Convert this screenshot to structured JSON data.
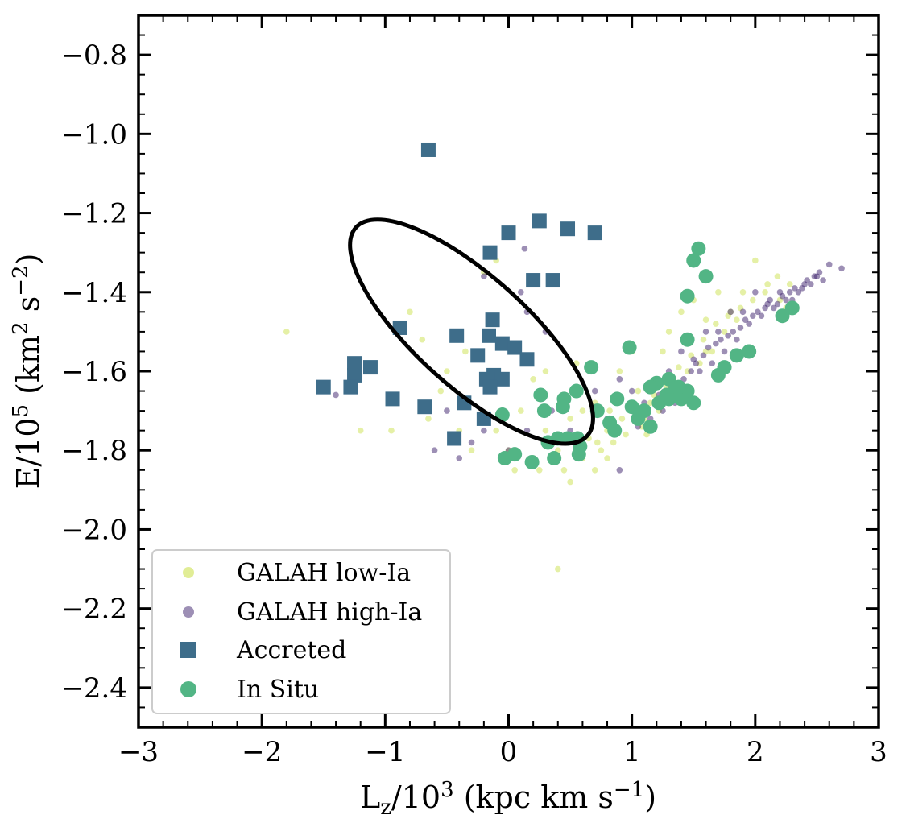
{
  "chart_data": {
    "type": "scatter",
    "title": "",
    "xlabel": {
      "base": "L",
      "sub": "z",
      "mid": "/10",
      "sup": "3",
      "tail": " (kpc km s",
      "tail_sup": "−1",
      "end": ")"
    },
    "ylabel": {
      "base": "E/10",
      "sup": "5",
      "mid": " (km",
      "sup2": "2",
      "mid2": " s",
      "sup3": "−2",
      "end": ")"
    },
    "xlim": [
      -3,
      3
    ],
    "ylim": [
      -2.5,
      -0.7
    ],
    "y_inverted": true,
    "x_ticks": [
      {
        "value": -3,
        "label": "−3"
      },
      {
        "value": -2,
        "label": "−2"
      },
      {
        "value": -1,
        "label": "−1"
      },
      {
        "value": 0,
        "label": "0"
      },
      {
        "value": 1,
        "label": "1"
      },
      {
        "value": 2,
        "label": "2"
      },
      {
        "value": 3,
        "label": "3"
      }
    ],
    "y_ticks": [
      {
        "value": -0.8,
        "label": "−0.8"
      },
      {
        "value": -1.0,
        "label": "−1.0"
      },
      {
        "value": -1.2,
        "label": "−1.2"
      },
      {
        "value": -1.4,
        "label": "−1.4"
      },
      {
        "value": -1.6,
        "label": "−1.6"
      },
      {
        "value": -1.8,
        "label": "−1.8"
      },
      {
        "value": -2.0,
        "label": "−2.0"
      },
      {
        "value": -2.2,
        "label": "−2.2"
      },
      {
        "value": -2.4,
        "label": "−2.4"
      }
    ],
    "ellipse": {
      "cx": -0.3,
      "cy": -1.5,
      "rx": 0.45,
      "ry": 0.48,
      "angle_deg": -48,
      "color": "#000000"
    },
    "legend_position": "lower-left",
    "series": [
      {
        "name": "GALAH low-Ia",
        "marker": "small-circle",
        "color": "#d4e66a",
        "opacity": 0.6,
        "points": [
          [
            -1.8,
            -1.5
          ],
          [
            -1.2,
            -1.75
          ],
          [
            -0.95,
            -1.75
          ],
          [
            -0.7,
            -1.52
          ],
          [
            -0.5,
            -1.6
          ],
          [
            -0.4,
            -1.75
          ],
          [
            -0.3,
            -1.8
          ],
          [
            -0.2,
            -1.35
          ],
          [
            -0.1,
            -1.32
          ],
          [
            0.2,
            -1.62
          ],
          [
            0.3,
            -1.6
          ],
          [
            0.1,
            -1.7
          ],
          [
            -0.1,
            -1.75
          ],
          [
            0.0,
            -1.8
          ],
          [
            0.05,
            -1.85
          ],
          [
            0.2,
            -1.82
          ],
          [
            0.4,
            -1.8
          ],
          [
            0.5,
            -1.72
          ],
          [
            0.55,
            -1.58
          ],
          [
            0.7,
            -1.68
          ],
          [
            0.8,
            -1.75
          ],
          [
            0.9,
            -1.6
          ],
          [
            1.0,
            -1.55
          ],
          [
            1.05,
            -1.65
          ],
          [
            1.1,
            -1.72
          ],
          [
            1.2,
            -1.62
          ],
          [
            1.25,
            -1.55
          ],
          [
            1.3,
            -1.5
          ],
          [
            1.4,
            -1.45
          ],
          [
            1.5,
            -1.42
          ],
          [
            1.6,
            -1.55
          ],
          [
            1.7,
            -1.4
          ],
          [
            1.8,
            -1.45
          ],
          [
            1.9,
            -1.4
          ],
          [
            2.0,
            -1.32
          ],
          [
            2.1,
            -1.38
          ],
          [
            2.2,
            -1.42
          ],
          [
            0.4,
            -2.1
          ],
          [
            0.7,
            -1.85
          ],
          [
            0.75,
            -1.8
          ],
          [
            0.85,
            -1.78
          ],
          [
            0.95,
            -1.76
          ],
          [
            1.0,
            -1.7
          ],
          [
            1.15,
            -1.68
          ],
          [
            1.35,
            -1.63
          ],
          [
            1.45,
            -1.6
          ],
          [
            1.55,
            -1.58
          ],
          [
            1.65,
            -1.55
          ],
          [
            1.75,
            -1.5
          ],
          [
            1.85,
            -1.47
          ],
          [
            0.6,
            -1.7
          ],
          [
            0.65,
            -1.77
          ],
          [
            0.72,
            -1.78
          ],
          [
            0.8,
            -1.82
          ],
          [
            0.3,
            -1.75
          ],
          [
            0.45,
            -1.85
          ],
          [
            -0.55,
            -1.65
          ],
          [
            -0.65,
            -1.72
          ],
          [
            -0.35,
            -1.55
          ],
          [
            0.25,
            -1.85
          ],
          [
            0.38,
            -1.78
          ],
          [
            0.92,
            -1.72
          ],
          [
            1.08,
            -1.74
          ],
          [
            1.18,
            -1.66
          ],
          [
            1.28,
            -1.64
          ],
          [
            1.38,
            -1.59
          ],
          [
            1.48,
            -1.56
          ],
          [
            1.58,
            -1.52
          ],
          [
            1.68,
            -1.48
          ],
          [
            1.78,
            -1.46
          ],
          [
            1.88,
            -1.44
          ],
          [
            1.98,
            -1.42
          ],
          [
            2.08,
            -1.4
          ],
          [
            2.18,
            -1.36
          ],
          [
            2.28,
            -1.38
          ],
          [
            0.5,
            -1.88
          ],
          [
            0.6,
            -1.82
          ],
          [
            1.22,
            -1.7
          ],
          [
            0.82,
            -1.7
          ],
          [
            1.12,
            -1.76
          ],
          [
            -1.1,
            -1.6
          ],
          [
            -0.8,
            -1.45
          ],
          [
            0.15,
            -1.58
          ],
          [
            1.6,
            -1.47
          ],
          [
            2.25,
            -1.44
          ]
        ]
      },
      {
        "name": "GALAH high-Ia",
        "marker": "small-circle",
        "color": "#3b1f6b",
        "opacity": 0.5,
        "points": [
          [
            -1.5,
            -1.65
          ],
          [
            -1.4,
            -1.66
          ],
          [
            -0.5,
            -1.7
          ],
          [
            -0.4,
            -1.82
          ],
          [
            -0.2,
            -1.75
          ],
          [
            0.0,
            -1.8
          ],
          [
            0.15,
            -1.75
          ],
          [
            -0.2,
            -1.36
          ],
          [
            0.1,
            -1.4
          ],
          [
            0.15,
            -1.45
          ],
          [
            0.13,
            -1.29
          ],
          [
            0.3,
            -1.5
          ],
          [
            0.7,
            -1.65
          ],
          [
            0.9,
            -1.62
          ],
          [
            1.0,
            -1.65
          ],
          [
            1.1,
            -1.68
          ],
          [
            1.2,
            -1.62
          ],
          [
            1.3,
            -1.6
          ],
          [
            1.4,
            -1.55
          ],
          [
            1.5,
            -1.57
          ],
          [
            1.6,
            -1.5
          ],
          [
            1.7,
            -1.5
          ],
          [
            1.8,
            -1.45
          ],
          [
            1.9,
            -1.45
          ],
          [
            2.0,
            -1.4
          ],
          [
            2.1,
            -1.43
          ],
          [
            2.2,
            -1.4
          ],
          [
            2.3,
            -1.42
          ],
          [
            2.4,
            -1.38
          ],
          [
            2.5,
            -1.36
          ],
          [
            2.6,
            -1.33
          ],
          [
            2.7,
            -1.34
          ],
          [
            0.9,
            -1.85
          ],
          [
            1.15,
            -1.72
          ],
          [
            1.25,
            -1.7
          ],
          [
            1.35,
            -1.68
          ],
          [
            1.45,
            -1.65
          ],
          [
            1.55,
            -1.6
          ],
          [
            1.65,
            -1.58
          ],
          [
            1.75,
            -1.55
          ],
          [
            1.85,
            -1.52
          ],
          [
            1.95,
            -1.48
          ],
          [
            2.05,
            -1.46
          ],
          [
            2.15,
            -1.44
          ],
          [
            2.25,
            -1.42
          ],
          [
            2.35,
            -1.4
          ],
          [
            2.45,
            -1.38
          ],
          [
            2.55,
            -1.37
          ],
          [
            -0.6,
            -1.8
          ],
          [
            0.5,
            -1.75
          ],
          [
            0.8,
            -1.72
          ],
          [
            1.05,
            -1.74
          ],
          [
            1.22,
            -1.66
          ],
          [
            1.32,
            -1.64
          ],
          [
            1.42,
            -1.62
          ],
          [
            1.52,
            -1.58
          ],
          [
            1.62,
            -1.54
          ],
          [
            1.72,
            -1.52
          ],
          [
            1.82,
            -1.5
          ],
          [
            1.92,
            -1.47
          ],
          [
            2.02,
            -1.45
          ],
          [
            2.12,
            -1.42
          ],
          [
            2.22,
            -1.41
          ],
          [
            2.32,
            -1.39
          ],
          [
            2.42,
            -1.37
          ],
          [
            2.52,
            -1.35
          ],
          [
            1.12,
            -1.64
          ],
          [
            1.28,
            -1.66
          ],
          [
            1.38,
            -1.63
          ],
          [
            1.48,
            -1.6
          ],
          [
            1.58,
            -1.56
          ],
          [
            1.68,
            -1.53
          ],
          [
            1.78,
            -1.51
          ],
          [
            1.88,
            -1.49
          ],
          [
            1.98,
            -1.46
          ],
          [
            2.08,
            -1.44
          ],
          [
            2.18,
            -1.43
          ],
          [
            2.28,
            -1.4
          ],
          [
            2.38,
            -1.39
          ],
          [
            2.48,
            -1.36
          ],
          [
            -0.3,
            -1.78
          ],
          [
            0.35,
            -1.7
          ]
        ]
      },
      {
        "name": "Accreted",
        "marker": "square",
        "color": "#3e6d8a",
        "opacity": 1,
        "points": [
          [
            -0.65,
            -1.04
          ],
          [
            0.25,
            -1.22
          ],
          [
            0.0,
            -1.25
          ],
          [
            0.48,
            -1.24
          ],
          [
            0.7,
            -1.25
          ],
          [
            -0.15,
            -1.3
          ],
          [
            0.2,
            -1.37
          ],
          [
            0.36,
            -1.37
          ],
          [
            -0.88,
            -1.49
          ],
          [
            -0.13,
            -1.47
          ],
          [
            -0.42,
            -1.51
          ],
          [
            -0.16,
            -1.51
          ],
          [
            -0.05,
            -1.53
          ],
          [
            0.05,
            -1.54
          ],
          [
            -0.25,
            -1.56
          ],
          [
            0.15,
            -1.57
          ],
          [
            -1.25,
            -1.58
          ],
          [
            -1.12,
            -1.59
          ],
          [
            -1.25,
            -1.61
          ],
          [
            -0.12,
            -1.61
          ],
          [
            -0.05,
            -1.62
          ],
          [
            -0.18,
            -1.62
          ],
          [
            -1.5,
            -1.64
          ],
          [
            -1.28,
            -1.64
          ],
          [
            -0.15,
            -1.64
          ],
          [
            -0.94,
            -1.67
          ],
          [
            -0.36,
            -1.68
          ],
          [
            -0.68,
            -1.69
          ],
          [
            -0.2,
            -1.72
          ],
          [
            -0.44,
            -1.77
          ]
        ]
      },
      {
        "name": "In Situ",
        "marker": "large-circle",
        "color": "#52b585",
        "opacity": 1,
        "points": [
          [
            1.54,
            -1.29
          ],
          [
            1.5,
            -1.32
          ],
          [
            1.6,
            -1.36
          ],
          [
            1.45,
            -1.41
          ],
          [
            2.3,
            -1.44
          ],
          [
            2.22,
            -1.46
          ],
          [
            1.45,
            -1.52
          ],
          [
            0.98,
            -1.54
          ],
          [
            1.95,
            -1.55
          ],
          [
            1.85,
            -1.56
          ],
          [
            0.67,
            -1.59
          ],
          [
            1.75,
            -1.59
          ],
          [
            1.3,
            -1.62
          ],
          [
            1.2,
            -1.63
          ],
          [
            1.7,
            -1.61
          ],
          [
            1.35,
            -1.65
          ],
          [
            1.45,
            -1.65
          ],
          [
            1.15,
            -1.64
          ],
          [
            0.55,
            -1.65
          ],
          [
            0.26,
            -1.66
          ],
          [
            0.45,
            -1.67
          ],
          [
            0.88,
            -1.67
          ],
          [
            1.3,
            -1.67
          ],
          [
            1.4,
            -1.67
          ],
          [
            1.22,
            -1.68
          ],
          [
            0.44,
            -1.69
          ],
          [
            1.1,
            -1.7
          ],
          [
            1.5,
            -1.68
          ],
          [
            0.72,
            -1.7
          ],
          [
            0.29,
            -1.7
          ],
          [
            1.05,
            -1.72
          ],
          [
            1.15,
            -1.74
          ],
          [
            0.86,
            -1.75
          ],
          [
            0.82,
            -1.73
          ],
          [
            -0.05,
            -1.71
          ],
          [
            0.4,
            -1.77
          ],
          [
            0.32,
            -1.78
          ],
          [
            0.48,
            -1.77
          ],
          [
            0.56,
            -1.77
          ],
          [
            0.58,
            -1.79
          ],
          [
            0.57,
            -1.81
          ],
          [
            -0.03,
            -1.82
          ],
          [
            0.05,
            -1.81
          ],
          [
            0.19,
            -1.83
          ],
          [
            0.37,
            -1.82
          ],
          [
            1.0,
            -1.69
          ],
          [
            1.28,
            -1.66
          ],
          [
            1.38,
            -1.64
          ]
        ]
      }
    ]
  }
}
